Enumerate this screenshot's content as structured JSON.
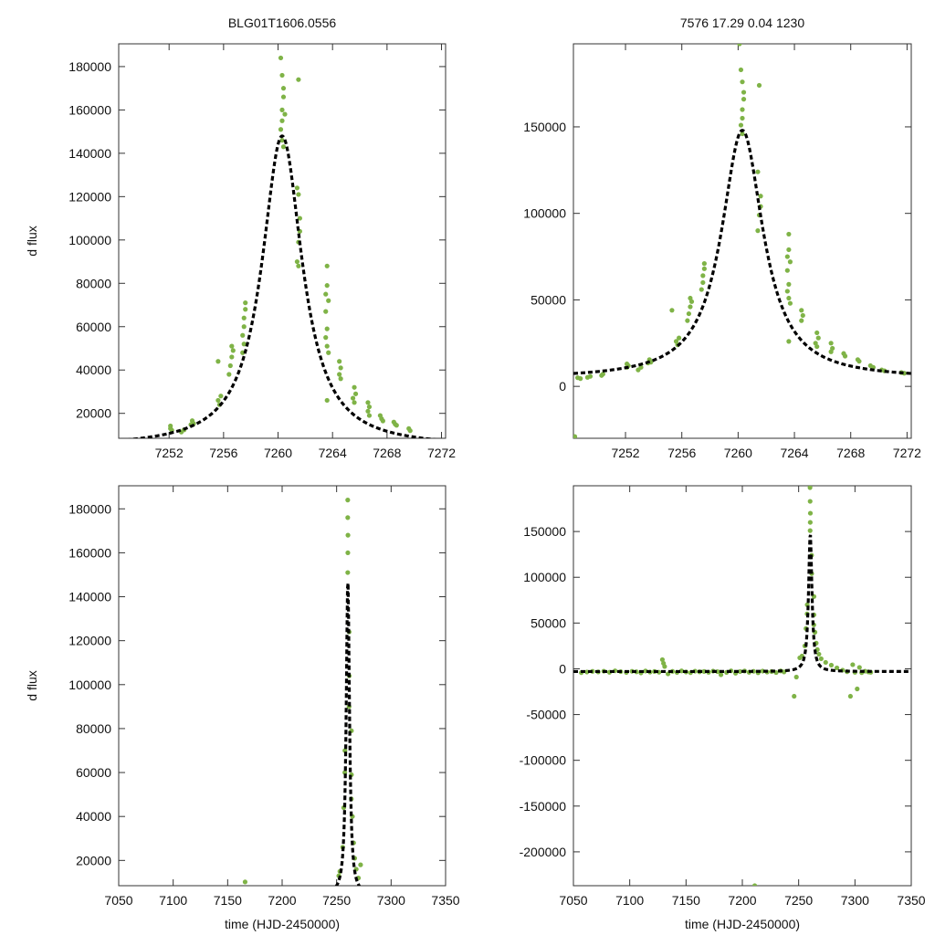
{
  "titles": {
    "left": "BLG01T1606.0556",
    "right": "7576  17.29  0.04  1230"
  },
  "colors": {
    "points": "#7fb347",
    "model": "#000000",
    "frame": "#333333"
  },
  "chart_data": [
    {
      "id": "top-left",
      "type": "scatter",
      "title": "BLG01T1606.0556",
      "xlabel": "",
      "ylabel": "d flux",
      "xlim": [
        7248.3,
        7272.3
      ],
      "ylim": [
        8500,
        190500
      ],
      "xticks": [
        7252,
        7256,
        7260,
        7264,
        7268,
        7272
      ],
      "yticks": [
        20000,
        40000,
        60000,
        80000,
        100000,
        120000,
        140000,
        160000,
        180000
      ],
      "model": {
        "t0": 7260.3,
        "peak": 148000,
        "base": 4300,
        "width": 1.8
      },
      "points": [
        [
          7252.1,
          13000
        ],
        [
          7252.1,
          14200
        ],
        [
          7252.2,
          12200
        ],
        [
          7252.9,
          11400
        ],
        [
          7253.1,
          12400
        ],
        [
          7253.6,
          14800
        ],
        [
          7253.7,
          16600
        ],
        [
          7253.8,
          15300
        ],
        [
          7255.6,
          44000
        ],
        [
          7255.6,
          26000
        ],
        [
          7255.7,
          24000
        ],
        [
          7255.8,
          28000
        ],
        [
          7256.4,
          38000
        ],
        [
          7256.5,
          42000
        ],
        [
          7256.6,
          46000
        ],
        [
          7256.6,
          51000
        ],
        [
          7256.7,
          49000
        ],
        [
          7257.4,
          56000
        ],
        [
          7257.5,
          60000
        ],
        [
          7257.5,
          64000
        ],
        [
          7257.6,
          68000
        ],
        [
          7257.6,
          71000
        ],
        [
          7257.4,
          48000
        ],
        [
          7257.5,
          52000
        ],
        [
          7260.2,
          151000
        ],
        [
          7260.3,
          155000
        ],
        [
          7260.3,
          160000
        ],
        [
          7260.4,
          166000
        ],
        [
          7260.4,
          170000
        ],
        [
          7260.3,
          176000
        ],
        [
          7260.2,
          184000
        ],
        [
          7260.3,
          146000
        ],
        [
          7260.4,
          143000
        ],
        [
          7260.5,
          158000
        ],
        [
          7261.5,
          174000
        ],
        [
          7261.4,
          124000
        ],
        [
          7261.5,
          121000
        ],
        [
          7261.6,
          110000
        ],
        [
          7261.6,
          104000
        ],
        [
          7261.5,
          99000
        ],
        [
          7261.4,
          90000
        ],
        [
          7261.5,
          88000
        ],
        [
          7263.6,
          88000
        ],
        [
          7263.6,
          79000
        ],
        [
          7263.5,
          75000
        ],
        [
          7263.7,
          72000
        ],
        [
          7263.5,
          67000
        ],
        [
          7263.6,
          59000
        ],
        [
          7263.5,
          55000
        ],
        [
          7263.6,
          51000
        ],
        [
          7263.7,
          48000
        ],
        [
          7263.6,
          26000
        ],
        [
          7264.5,
          44000
        ],
        [
          7264.6,
          41000
        ],
        [
          7264.5,
          38000
        ],
        [
          7264.6,
          36000
        ],
        [
          7265.6,
          32000
        ],
        [
          7265.7,
          29000
        ],
        [
          7265.5,
          27000
        ],
        [
          7265.6,
          25000
        ],
        [
          7266.6,
          25000
        ],
        [
          7266.7,
          23000
        ],
        [
          7266.6,
          21000
        ],
        [
          7266.7,
          19000
        ],
        [
          7267.5,
          19000
        ],
        [
          7267.6,
          17500
        ],
        [
          7267.7,
          16500
        ],
        [
          7268.5,
          16000
        ],
        [
          7268.6,
          15000
        ],
        [
          7268.7,
          14500
        ],
        [
          7269.6,
          13000
        ],
        [
          7269.7,
          12000
        ]
      ]
    },
    {
      "id": "top-right",
      "type": "scatter",
      "title": "7576  17.29  0.04  1230",
      "xlabel": "",
      "ylabel": "",
      "xlim": [
        7248.3,
        7272.3
      ],
      "ylim": [
        -30000,
        198000
      ],
      "xticks": [
        7252,
        7256,
        7260,
        7264,
        7268,
        7272
      ],
      "yticks": [
        0,
        50000,
        100000,
        150000
      ],
      "model": {
        "t0": 7260.3,
        "peak": 148000,
        "base": 4300,
        "width": 1.8
      },
      "points": [
        [
          7248.4,
          -29000
        ],
        [
          7248.6,
          5000
        ],
        [
          7248.8,
          4500
        ],
        [
          7249.3,
          5200
        ],
        [
          7249.5,
          5800
        ],
        [
          7250.3,
          6300
        ],
        [
          7250.4,
          7100
        ],
        [
          7252.1,
          11000
        ],
        [
          7252.1,
          13000
        ],
        [
          7252.2,
          12000
        ],
        [
          7252.9,
          9500
        ],
        [
          7253.1,
          11000
        ],
        [
          7253.6,
          13500
        ],
        [
          7253.7,
          15500
        ],
        [
          7253.8,
          14000
        ],
        [
          7255.3,
          44000
        ],
        [
          7255.6,
          26000
        ],
        [
          7255.7,
          24000
        ],
        [
          7255.8,
          28000
        ],
        [
          7256.4,
          38000
        ],
        [
          7256.5,
          42000
        ],
        [
          7256.6,
          46000
        ],
        [
          7256.6,
          51000
        ],
        [
          7256.7,
          49000
        ],
        [
          7257.4,
          56000
        ],
        [
          7257.5,
          60000
        ],
        [
          7257.5,
          64000
        ],
        [
          7257.6,
          68000
        ],
        [
          7257.6,
          71000
        ],
        [
          7260.2,
          151000
        ],
        [
          7260.3,
          155000
        ],
        [
          7260.3,
          160000
        ],
        [
          7260.4,
          166000
        ],
        [
          7260.4,
          170000
        ],
        [
          7260.3,
          176000
        ],
        [
          7260.2,
          183000
        ],
        [
          7260.1,
          198000
        ],
        [
          7260.3,
          146000
        ],
        [
          7261.5,
          174000
        ],
        [
          7261.4,
          124000
        ],
        [
          7261.6,
          110000
        ],
        [
          7261.6,
          104000
        ],
        [
          7261.5,
          99000
        ],
        [
          7261.4,
          90000
        ],
        [
          7263.6,
          88000
        ],
        [
          7263.6,
          79000
        ],
        [
          7263.5,
          75000
        ],
        [
          7263.7,
          72000
        ],
        [
          7263.5,
          67000
        ],
        [
          7263.6,
          59000
        ],
        [
          7263.5,
          55000
        ],
        [
          7263.6,
          51000
        ],
        [
          7263.7,
          48000
        ],
        [
          7263.6,
          26000
        ],
        [
          7264.5,
          44000
        ],
        [
          7264.6,
          41000
        ],
        [
          7264.5,
          38000
        ],
        [
          7265.6,
          31000
        ],
        [
          7265.7,
          28000
        ],
        [
          7265.5,
          25000
        ],
        [
          7265.6,
          23000
        ],
        [
          7266.6,
          25000
        ],
        [
          7266.7,
          22000
        ],
        [
          7266.6,
          20000
        ],
        [
          7267.5,
          19000
        ],
        [
          7267.6,
          17500
        ],
        [
          7268.5,
          15500
        ],
        [
          7268.6,
          14500
        ],
        [
          7269.4,
          12000
        ],
        [
          7269.6,
          11000
        ],
        [
          7270.2,
          9500
        ],
        [
          7270.4,
          9000
        ],
        [
          7271.6,
          8000
        ],
        [
          7271.8,
          7600
        ]
      ]
    },
    {
      "id": "bottom-left",
      "type": "scatter",
      "title": "",
      "xlabel": "time (HJD-2450000)",
      "ylabel": "d flux",
      "xlim": [
        7050,
        7350
      ],
      "ylim": [
        8500,
        190500
      ],
      "xticks": [
        7050,
        7100,
        7150,
        7200,
        7250,
        7300,
        7350
      ],
      "yticks": [
        20000,
        40000,
        60000,
        80000,
        100000,
        120000,
        140000,
        160000,
        180000
      ],
      "model": {
        "t0": 7260.3,
        "peak": 148000,
        "base": 4300,
        "width": 1.8
      },
      "points": [
        [
          7166,
          10200
        ],
        [
          7252,
          13000
        ],
        [
          7253,
          15000
        ],
        [
          7255.6,
          26000
        ],
        [
          7256.5,
          44000
        ],
        [
          7257.5,
          60000
        ],
        [
          7257.6,
          70000
        ],
        [
          7260.2,
          151000
        ],
        [
          7260.3,
          160000
        ],
        [
          7260.4,
          168000
        ],
        [
          7260.2,
          176000
        ],
        [
          7260.2,
          184000
        ],
        [
          7261.5,
          124000
        ],
        [
          7261.6,
          104000
        ],
        [
          7261.4,
          90000
        ],
        [
          7263.6,
          79000
        ],
        [
          7263.6,
          59000
        ],
        [
          7263.5,
          48000
        ],
        [
          7264.5,
          40000
        ],
        [
          7265.6,
          28000
        ],
        [
          7266.6,
          21000
        ],
        [
          7268,
          16000
        ],
        [
          7270,
          12000
        ],
        [
          7272,
          18000
        ]
      ]
    },
    {
      "id": "bottom-right",
      "type": "scatter",
      "title": "",
      "xlabel": "time (HJD-2450000)",
      "ylabel": "",
      "xlim": [
        7050,
        7350
      ],
      "ylim": [
        -237000,
        200000
      ],
      "xticks": [
        7050,
        7100,
        7150,
        7200,
        7250,
        7300,
        7350
      ],
      "yticks": [
        -200000,
        -150000,
        -100000,
        -50000,
        0,
        50000,
        100000,
        150000
      ],
      "model": {
        "t0": 7260.3,
        "peak": 148000,
        "base": -3000,
        "width": 1.8
      },
      "points": [
        [
          7057,
          -4200
        ],
        [
          7062,
          -3500
        ],
        [
          7067,
          -2800
        ],
        [
          7072,
          -3400
        ],
        [
          7077,
          -2600
        ],
        [
          7082,
          -3800
        ],
        [
          7087,
          -2200
        ],
        [
          7092,
          -3100
        ],
        [
          7097,
          -4000
        ],
        [
          7102,
          -2700
        ],
        [
          7106,
          -3300
        ],
        [
          7110,
          -4500
        ],
        [
          7114,
          -2400
        ],
        [
          7118,
          -3600
        ],
        [
          7122,
          -2900
        ],
        [
          7126,
          -3700
        ],
        [
          7129,
          10000
        ],
        [
          7130,
          6000
        ],
        [
          7131,
          2500
        ],
        [
          7134,
          -5500
        ],
        [
          7138,
          -2800
        ],
        [
          7142,
          -3900
        ],
        [
          7146,
          -2300
        ],
        [
          7150,
          -3500
        ],
        [
          7154,
          -4200
        ],
        [
          7158,
          -2600
        ],
        [
          7162,
          -3300
        ],
        [
          7166,
          -2900
        ],
        [
          7170,
          -3800
        ],
        [
          7174,
          -2500
        ],
        [
          7178,
          -3100
        ],
        [
          7181,
          -6500
        ],
        [
          7186,
          -3900
        ],
        [
          7190,
          -2200
        ],
        [
          7194,
          -4800
        ],
        [
          7198,
          -3000
        ],
        [
          7202,
          -2400
        ],
        [
          7206,
          -3800
        ],
        [
          7210,
          -2700
        ],
        [
          7211,
          -237000
        ],
        [
          7214,
          -4300
        ],
        [
          7218,
          -2500
        ],
        [
          7222,
          -3600
        ],
        [
          7226,
          -2900
        ],
        [
          7230,
          -4100
        ],
        [
          7234,
          -2300
        ],
        [
          7237,
          -3400
        ],
        [
          7246,
          -30000
        ],
        [
          7248,
          -9000
        ],
        [
          7251,
          12000
        ],
        [
          7253,
          14000
        ],
        [
          7255.5,
          25000
        ],
        [
          7256.5,
          44000
        ],
        [
          7257.5,
          60000
        ],
        [
          7257.6,
          70000
        ],
        [
          7260.2,
          151000
        ],
        [
          7260.3,
          160000
        ],
        [
          7260.4,
          170000
        ],
        [
          7260.2,
          183000
        ],
        [
          7260.1,
          198000
        ],
        [
          7261.5,
          124000
        ],
        [
          7261.6,
          104000
        ],
        [
          7263.6,
          79000
        ],
        [
          7263.6,
          59000
        ],
        [
          7263.5,
          48000
        ],
        [
          7264.5,
          40000
        ],
        [
          7265.6,
          28000
        ],
        [
          7266.6,
          21000
        ],
        [
          7268,
          16000
        ],
        [
          7270,
          11000
        ],
        [
          7274,
          7000
        ],
        [
          7279,
          4000
        ],
        [
          7284,
          1000
        ],
        [
          7289,
          -1500
        ],
        [
          7293,
          -3200
        ],
        [
          7296,
          -30000
        ],
        [
          7298,
          4500
        ],
        [
          7300,
          -3800
        ],
        [
          7302,
          -22000
        ],
        [
          7304,
          1500
        ],
        [
          7306,
          -4200
        ],
        [
          7309,
          -2600
        ],
        [
          7312,
          -3400
        ],
        [
          7314,
          -3800
        ]
      ]
    }
  ]
}
